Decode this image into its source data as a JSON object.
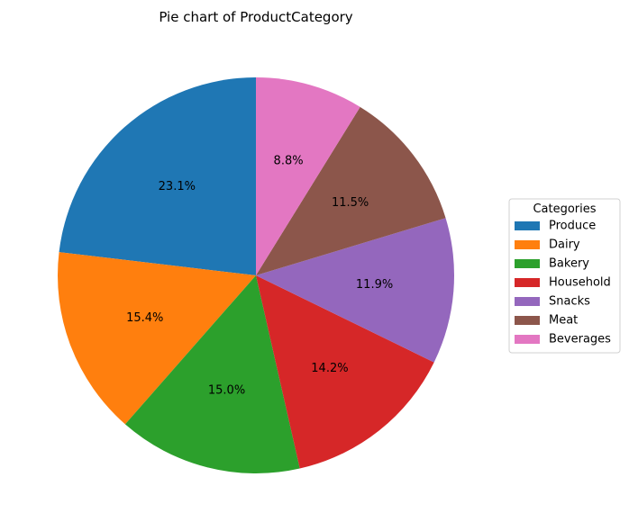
{
  "chart_data": {
    "type": "pie",
    "title": "Pie chart of ProductCategory",
    "legend_title": "Categories",
    "legend_position": "center-right",
    "start_angle_deg": 90,
    "direction": "counterclockwise",
    "categories": [
      "Produce",
      "Dairy",
      "Bakery",
      "Household",
      "Snacks",
      "Meat",
      "Beverages"
    ],
    "values": [
      23.1,
      15.4,
      15.0,
      14.2,
      11.9,
      11.5,
      8.8
    ],
    "labels": [
      "23.1%",
      "15.4%",
      "15.0%",
      "14.2%",
      "11.9%",
      "11.5%",
      "8.8%"
    ],
    "colors": [
      "#1f77b4",
      "#ff7f0e",
      "#2ca02c",
      "#d62728",
      "#9467bd",
      "#8c564b",
      "#e377c2"
    ]
  }
}
